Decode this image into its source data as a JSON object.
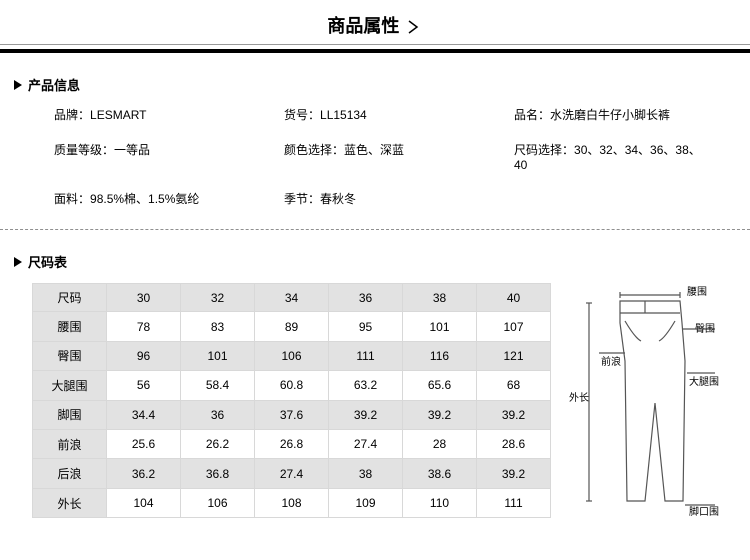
{
  "page_title": "商品属性",
  "sections": {
    "info_title": "产品信息",
    "size_title": "尺码表"
  },
  "info": {
    "brand_label": "品牌：",
    "brand": "LESMART",
    "sku_label": "货号：",
    "sku": "LL15134",
    "name_label": "品名：",
    "name": "水洗磨白牛仔小脚长裤",
    "grade_label": "质量等级：",
    "grade": "一等品",
    "color_label": "颜色选择：",
    "color": "蓝色、深蓝",
    "sizes_label": "尺码选择：",
    "sizes": "30、32、34、36、38、40",
    "fabric_label": "面料：",
    "fabric": "98.5%棉、1.5%氨纶",
    "season_label": "季节：",
    "season": "春秋冬"
  },
  "size_table": {
    "col_header": "尺码",
    "cols": [
      "30",
      "32",
      "34",
      "36",
      "38",
      "40"
    ],
    "rows": [
      {
        "label": "腰围",
        "v": [
          "78",
          "83",
          "89",
          "95",
          "101",
          "107"
        ]
      },
      {
        "label": "臀围",
        "v": [
          "96",
          "101",
          "106",
          "111",
          "116",
          "121"
        ]
      },
      {
        "label": "大腿围",
        "v": [
          "56",
          "58.4",
          "60.8",
          "63.2",
          "65.6",
          "68"
        ]
      },
      {
        "label": "脚围",
        "v": [
          "34.4",
          "36",
          "37.6",
          "39.2",
          "39.2",
          "39.2"
        ]
      },
      {
        "label": "前浪",
        "v": [
          "25.6",
          "26.2",
          "26.8",
          "27.4",
          "28",
          "28.6"
        ]
      },
      {
        "label": "后浪",
        "v": [
          "36.2",
          "36.8",
          "27.4",
          "38",
          "38.6",
          "39.2"
        ]
      },
      {
        "label": "外长",
        "v": [
          "104",
          "106",
          "108",
          "109",
          "110",
          "111"
        ]
      }
    ]
  },
  "diagram_labels": {
    "waist": "腰围",
    "hip": "臀围",
    "front": "前浪",
    "thigh": "大腿围",
    "hem": "脚口围",
    "outseam": "外长"
  },
  "style": {
    "table_border": "#bcbcbc",
    "cell_border": "#d8d8d8",
    "stripe_bg": "#e2e2e2",
    "diagram_stroke": "#555"
  }
}
